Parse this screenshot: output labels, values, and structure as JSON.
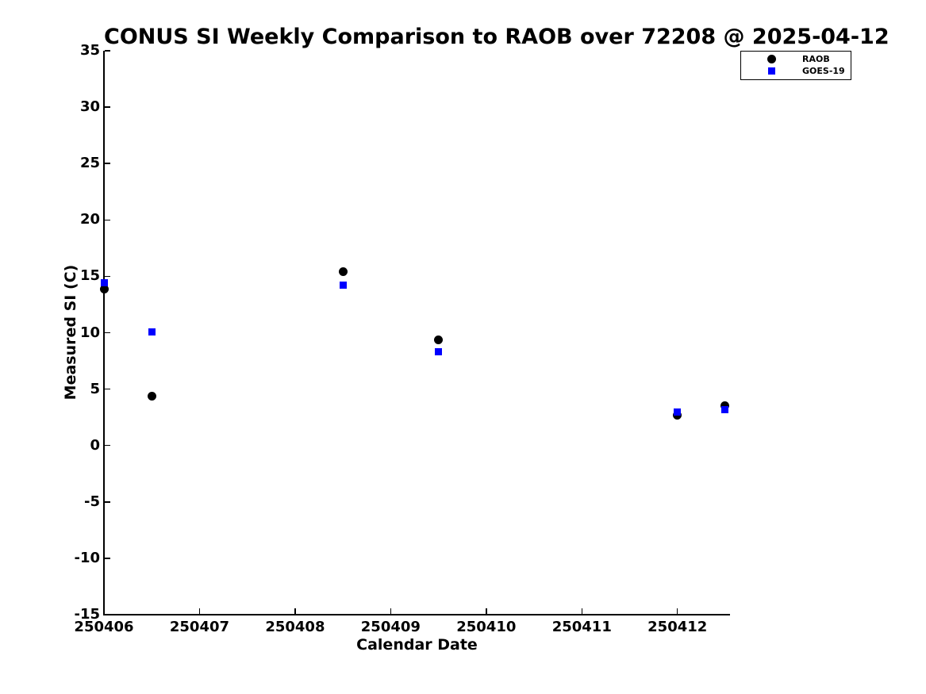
{
  "window": {
    "background": "#ffffff"
  },
  "colors": {
    "raob": "#000000",
    "goes19": "#0000ff",
    "axis": "#000000",
    "text": "#000000",
    "legend_border": "#000000"
  },
  "chart_data": {
    "type": "scatter",
    "title": "CONUS SI Weekly Comparison to RAOB over 72208 @ 2025-04-12",
    "xlabel": "Calendar Date",
    "ylabel": "Measured SI (C)",
    "xlim": [
      250406,
      250412.55
    ],
    "ylim": [
      -15,
      35
    ],
    "x_ticks": [
      250406,
      250407,
      250408,
      250409,
      250410,
      250411,
      250412
    ],
    "y_ticks": [
      35,
      30,
      25,
      20,
      15,
      10,
      5,
      0,
      -5,
      -10,
      -15
    ],
    "grid": false,
    "legend_position": "top-right",
    "series": [
      {
        "name": "RAOB",
        "marker": "circle",
        "color": "#000000",
        "x": [
          250406,
          250406.5,
          250408.5,
          250409.5,
          250412,
          250412.5
        ],
        "y": [
          13.9,
          4.4,
          15.4,
          9.4,
          2.7,
          3.5
        ]
      },
      {
        "name": "GOES-19",
        "marker": "square",
        "color": "#0000ff",
        "x": [
          250406,
          250406.5,
          250408.5,
          250409.5,
          250412,
          250412.5
        ],
        "y": [
          14.4,
          10.1,
          14.2,
          8.3,
          3.0,
          3.2
        ]
      }
    ]
  }
}
